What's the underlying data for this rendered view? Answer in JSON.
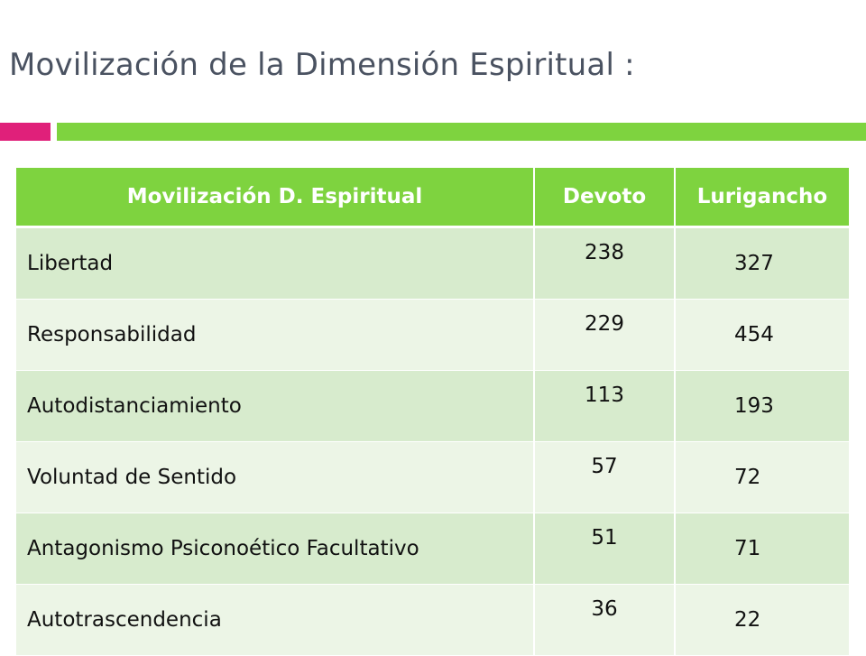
{
  "slide": {
    "title": "Movilización de la Dimensión Espiritual :"
  },
  "colors": {
    "accent_pink": "#e0207a",
    "accent_green": "#7ed33f",
    "title_text": "#4a5261",
    "row_dark": "#d7ebcd",
    "row_light": "#ecf5e6"
  },
  "table": {
    "headers": [
      "Movilización D. Espiritual",
      "Devoto",
      "Lurigancho"
    ],
    "rows": [
      {
        "label": "Libertad",
        "devoto": "238",
        "lurigancho": "327"
      },
      {
        "label": "Responsabilidad",
        "devoto": "229",
        "lurigancho": "454"
      },
      {
        "label": "Autodistanciamiento",
        "devoto": "113",
        "lurigancho": "193"
      },
      {
        "label": "Voluntad de Sentido",
        "devoto": "57",
        "lurigancho": "72"
      },
      {
        "label": "Antagonismo Psiconoético Facultativo",
        "devoto": "51",
        "lurigancho": "71"
      },
      {
        "label": "Autotrascendencia",
        "devoto": "36",
        "lurigancho": "22"
      }
    ]
  }
}
